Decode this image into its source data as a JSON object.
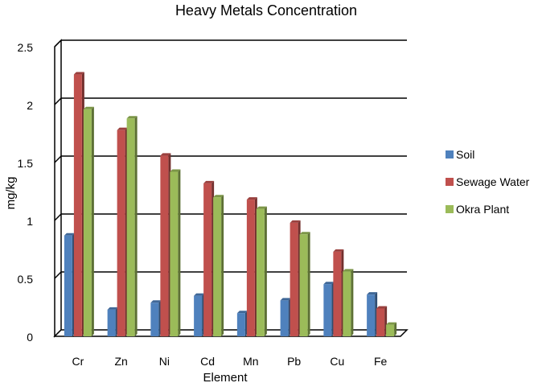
{
  "chart_data": {
    "type": "bar",
    "title": "Heavy Metals  Concentration",
    "xlabel": "Element",
    "ylabel": "mg/kg",
    "categories": [
      "Cr",
      "Zn",
      "Ni",
      "Cd",
      "Mn",
      "Pb",
      "Cu",
      "Fe"
    ],
    "series": [
      {
        "name": "Soil",
        "color": "#4f81bd",
        "values": [
          0.87,
          0.23,
          0.29,
          0.35,
          0.2,
          0.31,
          0.45,
          0.36
        ]
      },
      {
        "name": "Sewage Water",
        "color": "#c0504d",
        "values": [
          2.26,
          1.78,
          1.56,
          1.32,
          1.18,
          0.98,
          0.73,
          0.24
        ]
      },
      {
        "name": "Okra Plant",
        "color": "#9bbb59",
        "values": [
          1.96,
          1.88,
          1.42,
          1.2,
          1.1,
          0.88,
          0.56,
          0.1
        ]
      }
    ],
    "ylim": [
      0,
      2.5
    ],
    "yticks": [
      "0",
      "0.5",
      "1",
      "1.5",
      "2",
      "2.5"
    ],
    "grid": true,
    "legend": "right"
  }
}
